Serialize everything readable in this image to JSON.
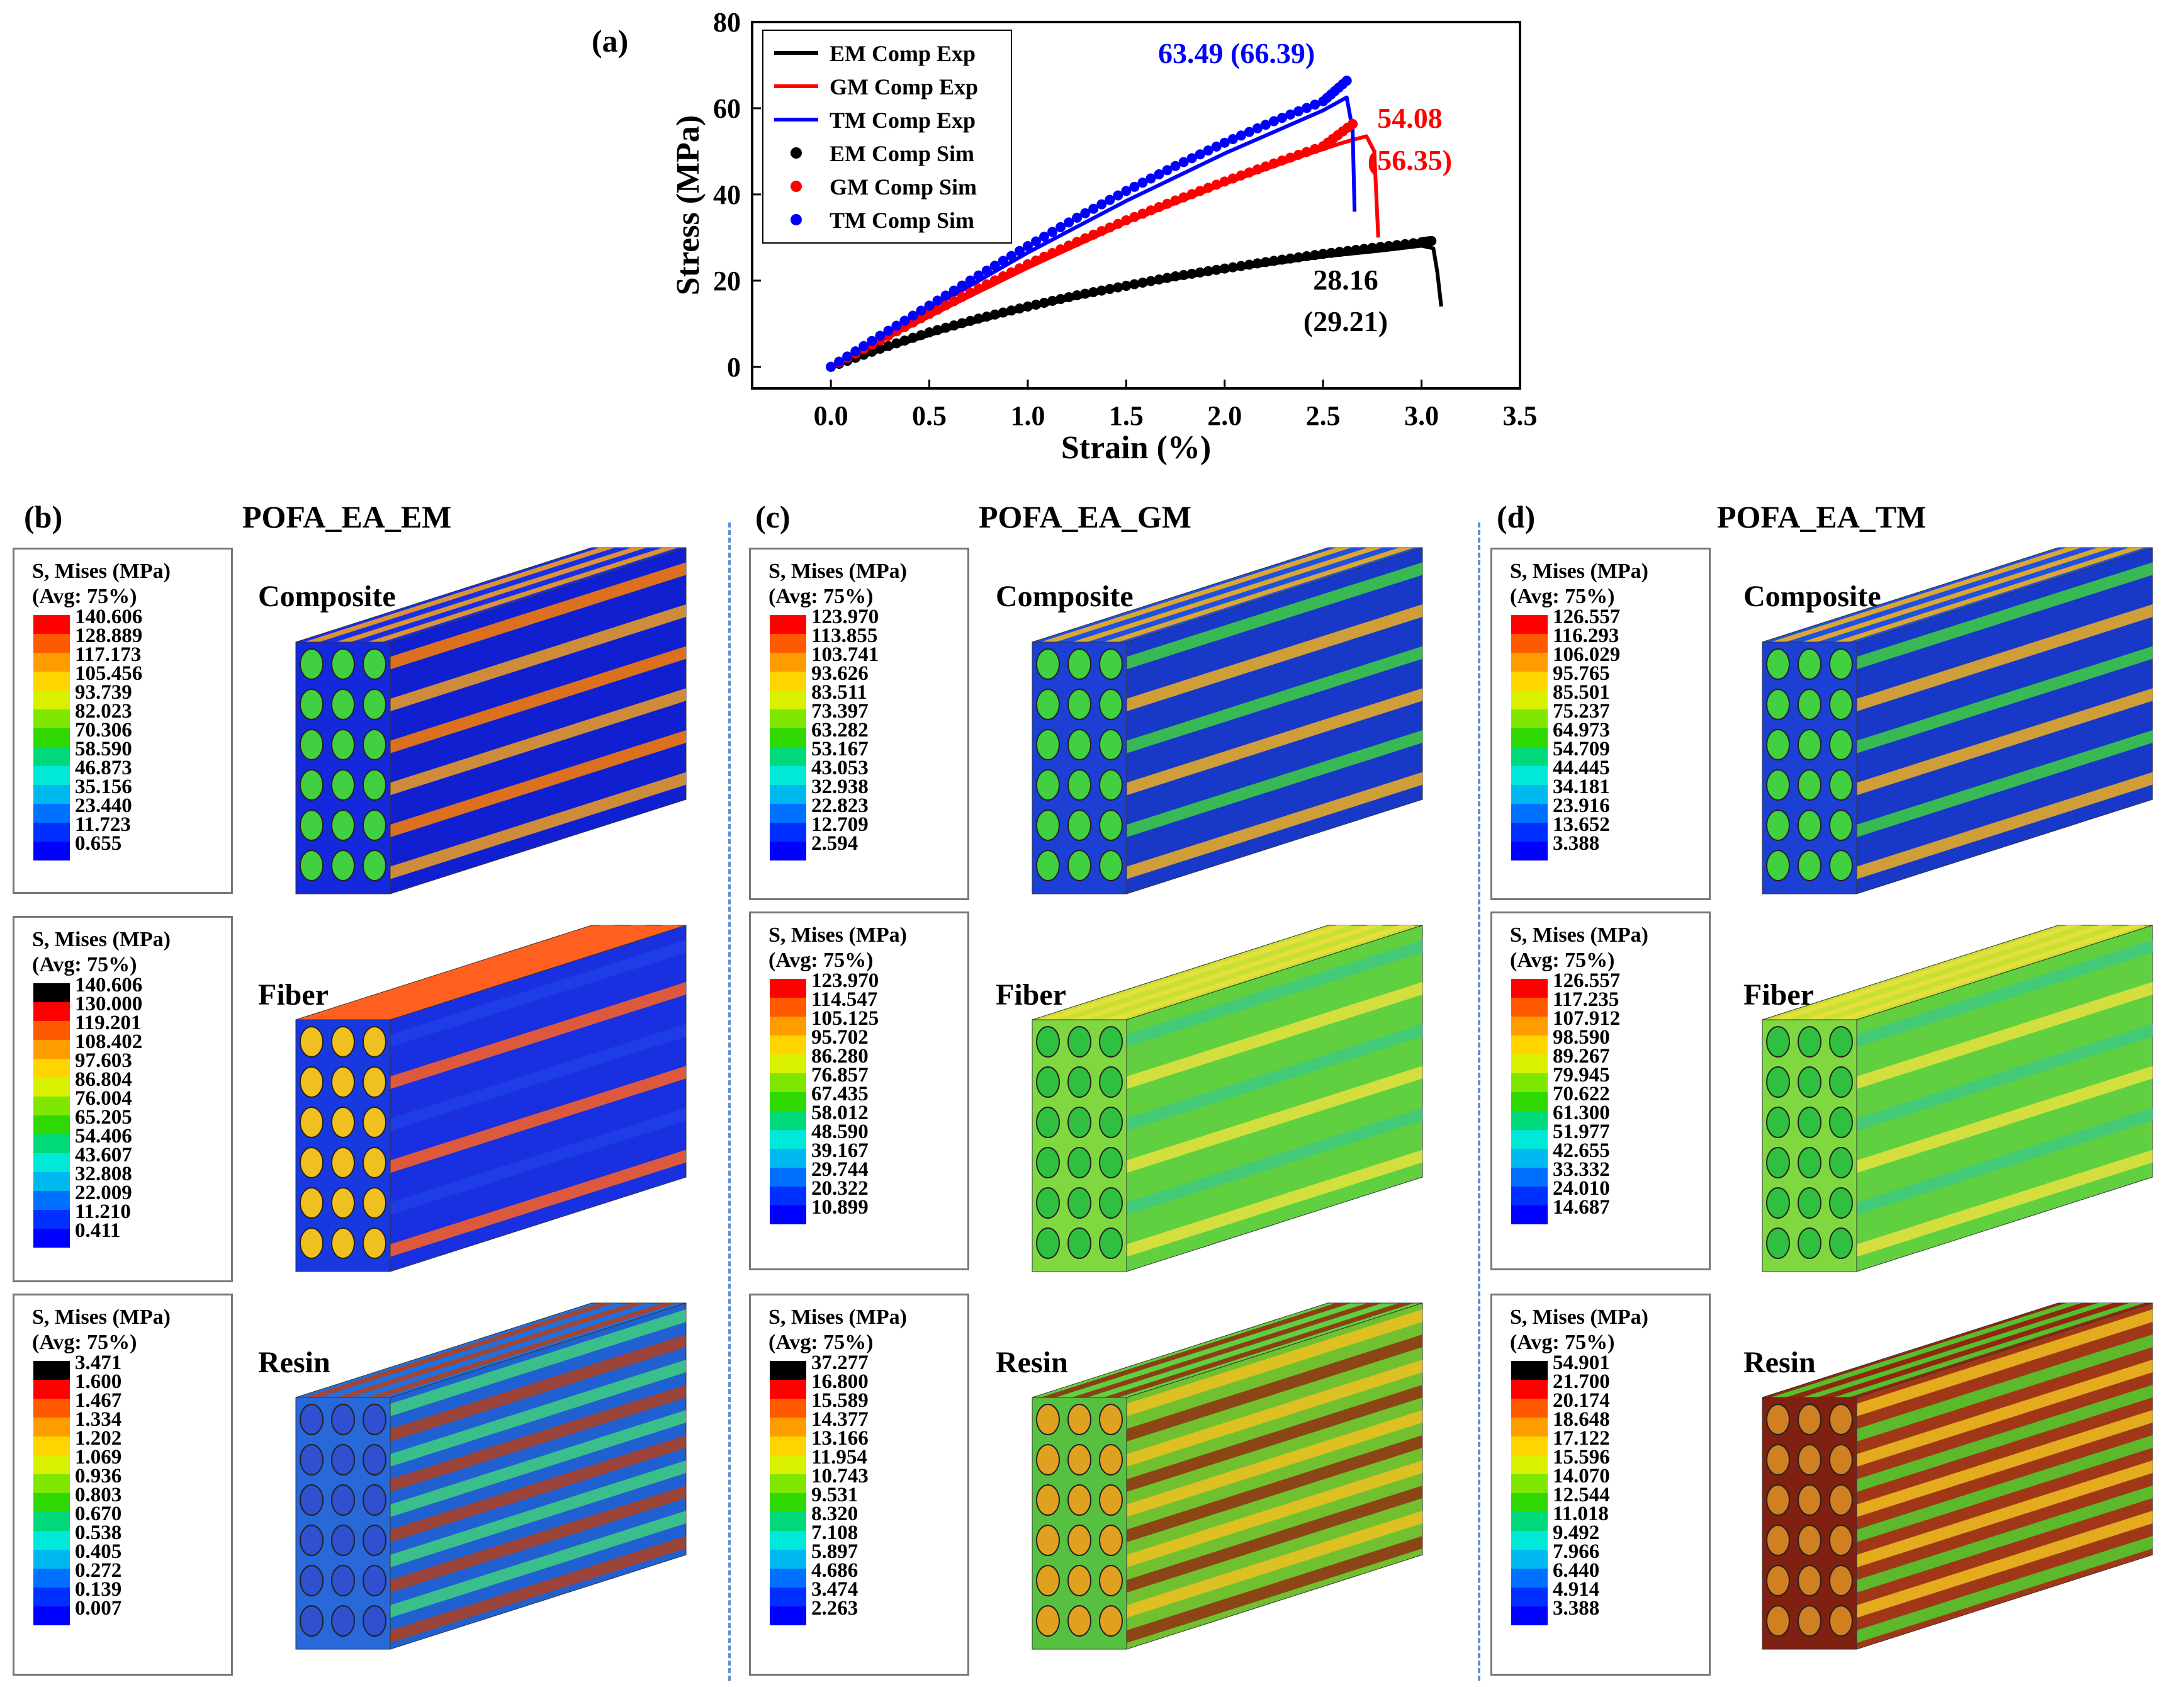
{
  "chart_data": {
    "type": "line",
    "panel_label": "(a)",
    "xlabel": "Strain (%)",
    "ylabel": "Stress (MPa)",
    "xlim": [
      -0.4,
      3.5
    ],
    "ylim": [
      -5,
      80
    ],
    "xticks": [
      "0.0",
      "0.5",
      "1.0",
      "1.5",
      "2.0",
      "2.5",
      "3.0",
      "3.5"
    ],
    "yticks": [
      "0",
      "20",
      "40",
      "60",
      "80"
    ],
    "legend_position": "top-left",
    "series": [
      {
        "name": "EM Comp Exp",
        "kind": "line",
        "color": "#000000",
        "x": [
          0,
          0.3,
          0.6,
          1.0,
          1.5,
          2.0,
          2.5,
          2.8,
          3.0,
          3.06,
          3.08,
          3.1
        ],
        "y": [
          0,
          4.5,
          8.8,
          13.6,
          18.5,
          22.4,
          25.6,
          27.0,
          28.1,
          27.5,
          22,
          14
        ]
      },
      {
        "name": "GM Comp Exp",
        "kind": "line",
        "color": "#ff0000",
        "x": [
          0,
          0.3,
          0.6,
          1.0,
          1.5,
          2.0,
          2.4,
          2.6,
          2.72,
          2.76,
          2.78
        ],
        "y": [
          0,
          7,
          14,
          23,
          33.5,
          42.5,
          49,
          52,
          53.5,
          50,
          30
        ]
      },
      {
        "name": "TM Comp Exp",
        "kind": "line",
        "color": "#0000ff",
        "x": [
          0,
          0.3,
          0.6,
          1.0,
          1.5,
          2.0,
          2.3,
          2.5,
          2.62,
          2.65,
          2.66
        ],
        "y": [
          0,
          8,
          16,
          26.5,
          38.5,
          49.5,
          55.5,
          59.5,
          62.5,
          55,
          36
        ]
      },
      {
        "name": "EM Comp Sim",
        "kind": "scatter",
        "color": "#000000",
        "x": [
          0,
          0.25,
          0.5,
          0.75,
          1.0,
          1.25,
          1.5,
          1.75,
          2.0,
          2.25,
          2.5,
          2.75,
          3.0,
          3.05
        ],
        "y": [
          0,
          4.2,
          8.0,
          11.2,
          14.0,
          16.6,
          18.8,
          21.0,
          22.8,
          24.6,
          26.2,
          27.6,
          28.9,
          29.2
        ]
      },
      {
        "name": "GM Comp Sim",
        "kind": "scatter",
        "color": "#ff0000",
        "x": [
          0,
          0.25,
          0.5,
          0.75,
          1.0,
          1.25,
          1.5,
          1.75,
          2.0,
          2.25,
          2.5,
          2.65
        ],
        "y": [
          0,
          6.2,
          12.3,
          18.2,
          23.8,
          29.0,
          34.0,
          38.6,
          43.0,
          47.2,
          51.2,
          56.35
        ]
      },
      {
        "name": "TM Comp Sim",
        "kind": "scatter",
        "color": "#0000ff",
        "x": [
          0,
          0.25,
          0.5,
          0.75,
          1.0,
          1.25,
          1.5,
          1.75,
          2.0,
          2.25,
          2.5,
          2.62
        ],
        "y": [
          0,
          7.2,
          14.2,
          21.2,
          28.0,
          34.6,
          40.8,
          46.6,
          52.0,
          57.0,
          61.6,
          66.39
        ]
      }
    ],
    "annotations": [
      {
        "text": "63.49 (66.39)",
        "color": "#0000ff"
      },
      {
        "text": "54.08",
        "color": "#ff0000"
      },
      {
        "text": "(56.35)",
        "color": "#ff0000"
      },
      {
        "text": "28.16",
        "color": "#000000"
      },
      {
        "text": "(29.21)",
        "color": "#000000"
      }
    ]
  },
  "panels": [
    {
      "label": "(b)",
      "title": "POFA_EA_EM"
    },
    {
      "label": "(c)",
      "title": "POFA_EA_GM"
    },
    {
      "label": "(d)",
      "title": "POFA_EA_TM"
    }
  ],
  "rows": [
    "Composite",
    "Fiber",
    "Resin"
  ],
  "legend_header": {
    "line1": "S, Mises   (MPa)",
    "line2": "(Avg: 75%)"
  },
  "scales": {
    "b_composite": [
      "140.606",
      "128.889",
      "117.173",
      "105.456",
      "93.739",
      "82.023",
      "70.306",
      "58.590",
      "46.873",
      "35.156",
      "23.440",
      "11.723",
      "0.655"
    ],
    "b_fiber": [
      "140.606",
      "130.000",
      "119.201",
      "108.402",
      "97.603",
      "86.804",
      "76.004",
      "65.205",
      "54.406",
      "43.607",
      "32.808",
      "22.009",
      "11.210",
      "0.411"
    ],
    "b_resin": [
      "3.471",
      "1.600",
      "1.467",
      "1.334",
      "1.202",
      "1.069",
      "0.936",
      "0.803",
      "0.670",
      "0.538",
      "0.405",
      "0.272",
      "0.139",
      "0.007"
    ],
    "c_composite": [
      "123.970",
      "113.855",
      "103.741",
      "93.626",
      "83.511",
      "73.397",
      "63.282",
      "53.167",
      "43.053",
      "32.938",
      "22.823",
      "12.709",
      "2.594"
    ],
    "c_fiber": [
      "123.970",
      "114.547",
      "105.125",
      "95.702",
      "86.280",
      "76.857",
      "67.435",
      "58.012",
      "48.590",
      "39.167",
      "29.744",
      "20.322",
      "10.899"
    ],
    "c_resin": [
      "37.277",
      "16.800",
      "15.589",
      "14.377",
      "13.166",
      "11.954",
      "10.743",
      "9.531",
      "8.320",
      "7.108",
      "5.897",
      "4.686",
      "3.474",
      "2.263"
    ],
    "d_composite": [
      "126.557",
      "116.293",
      "106.029",
      "95.765",
      "85.501",
      "75.237",
      "64.973",
      "54.709",
      "44.445",
      "34.181",
      "23.916",
      "13.652",
      "3.388"
    ],
    "d_fiber": [
      "126.557",
      "117.235",
      "107.912",
      "98.590",
      "89.267",
      "79.945",
      "70.622",
      "61.300",
      "51.977",
      "42.655",
      "33.332",
      "24.010",
      "14.687"
    ],
    "d_resin": [
      "54.901",
      "21.700",
      "20.174",
      "18.648",
      "17.122",
      "15.596",
      "14.070",
      "12.544",
      "11.018",
      "9.492",
      "7.966",
      "6.440",
      "4.914",
      "3.388"
    ]
  },
  "colors": {
    "scale13": [
      "#ff0000",
      "#ff5a00",
      "#ff9d00",
      "#ffd400",
      "#d9f000",
      "#7fe600",
      "#2ed800",
      "#00d97a",
      "#00e8d8",
      "#00b8f0",
      "#0070ff",
      "#0030ff",
      "#0000ff"
    ],
    "scale14": [
      "#000000",
      "#ff0000",
      "#ff5a00",
      "#ff9d00",
      "#ffd400",
      "#d9f000",
      "#7fe600",
      "#2ed800",
      "#00d97a",
      "#00e8d8",
      "#00b8f0",
      "#0070ff",
      "#0030ff",
      "#0000ff"
    ]
  }
}
